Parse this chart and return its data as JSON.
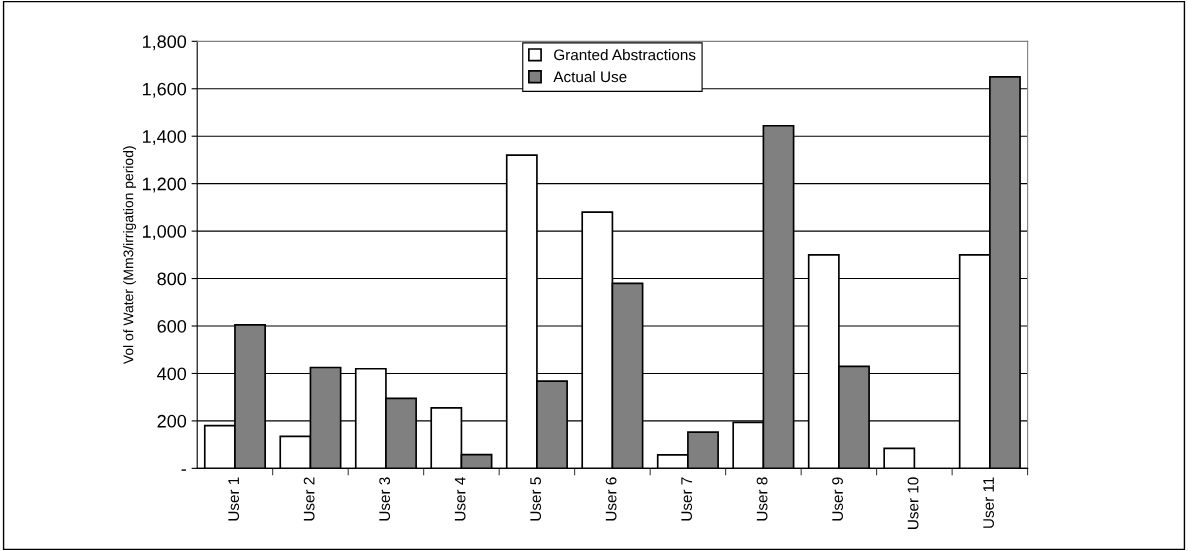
{
  "chart_data": {
    "type": "bar",
    "ylabel": "Vol of Water (Mm3/irrigation period)",
    "categories": [
      "User 1",
      "User 2",
      "User 3",
      "User 4",
      "User 5",
      "User 6",
      "User 7",
      "User 8",
      "User 9",
      "User 10",
      "User 11"
    ],
    "series": [
      {
        "name": "Granted Abstractions",
        "color": "#ffffff",
        "values": [
          180,
          135,
          420,
          255,
          1320,
          1080,
          57,
          194,
          900,
          84,
          900
        ]
      },
      {
        "name": "Actual Use",
        "color": "#808080",
        "values": [
          605,
          425,
          295,
          58,
          368,
          780,
          153,
          1444,
          430,
          null,
          1650
        ]
      }
    ],
    "ylim": [
      0,
      1800
    ],
    "yticks": [
      {
        "value": 0,
        "label": "-"
      },
      200,
      400,
      600,
      800,
      {
        "value": 1000,
        "label": "1,000"
      },
      {
        "value": 1200,
        "label": "1,200"
      },
      {
        "value": 1400,
        "label": "1,400"
      },
      {
        "value": 1600,
        "label": "1,600"
      },
      {
        "value": 1800,
        "label": "1,800"
      }
    ],
    "grid": "y",
    "legend": "top"
  }
}
